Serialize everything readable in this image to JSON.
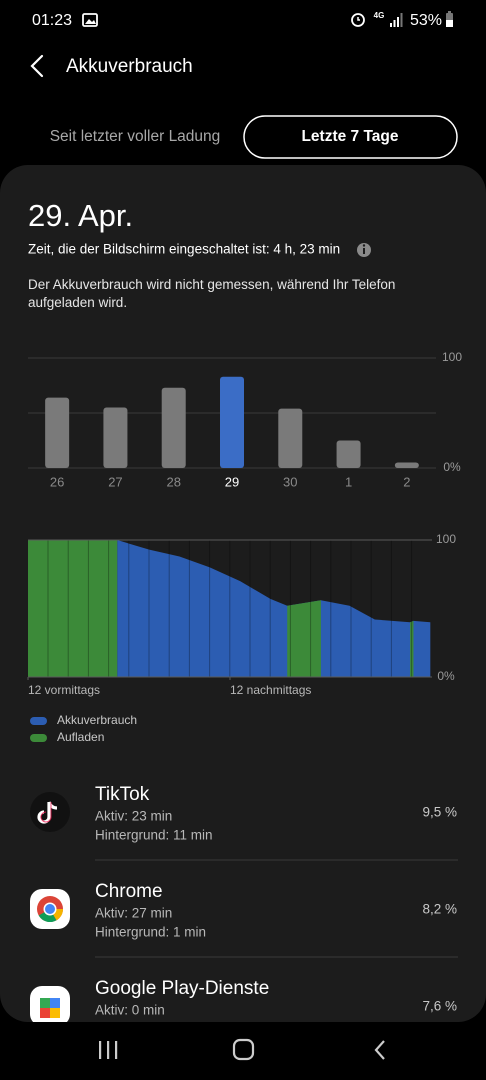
{
  "status_bar": {
    "time": "01:23",
    "network": "4G",
    "battery": "53%"
  },
  "header": {
    "title": "Akkuverbrauch"
  },
  "tabs": [
    "Seit letzter voller Ladung",
    "Letzte 7 Tage"
  ],
  "date": "29. Apr.",
  "screen_time": "Zeit, die der Bildschirm eingeschaltet ist: 4 h, 23 min",
  "note": "Der Akkuverbrauch wird nicht gemessen, während Ihr Telefon aufgeladen wird.",
  "chart_data": [
    {
      "type": "bar",
      "categories": [
        "26",
        "27",
        "28",
        "29",
        "30",
        "1",
        "2"
      ],
      "values": [
        64,
        55,
        73,
        83,
        54,
        25,
        5
      ],
      "colors": [
        "#7a7a7a",
        "#7a7a7a",
        "#7a7a7a",
        "#3b6dc6",
        "#7a7a7a",
        "#7a7a7a",
        "#7a7a7a"
      ],
      "ylim": [
        0,
        100
      ],
      "yticks": [
        {
          "value": 0,
          "label": "0%"
        },
        100
      ]
    },
    {
      "type": "area",
      "x": [
        0,
        5.3,
        6.1,
        7.2,
        9.0,
        10.8,
        12.6,
        14.4,
        15.4,
        17.4,
        19.1,
        20.6,
        22.7,
        22.9,
        23.9
      ],
      "series": [
        {
          "name": "Akkuverbrauch",
          "color": "#2c5db2",
          "values": [
            null,
            100,
            97,
            93,
            88,
            80,
            70,
            57,
            52,
            56,
            52,
            42,
            40,
            41,
            40
          ]
        },
        {
          "name": "Aufladen",
          "color": "#3c8a39",
          "values": [
            100,
            100,
            null,
            null,
            null,
            null,
            null,
            null,
            52,
            56,
            null,
            null,
            40,
            41,
            null
          ]
        }
      ],
      "xlim": [
        0,
        24
      ],
      "xticks": [
        {
          "value": 0,
          "label": "12 vormittags"
        },
        {
          "value": 12,
          "label": "12 nachmittags"
        }
      ],
      "ylim": [
        0,
        100
      ],
      "yticks": [
        {
          "value": 0,
          "label": "0%"
        },
        100
      ]
    }
  ],
  "apps": [
    {
      "name": "TikTok",
      "active": "Aktiv: 23 min",
      "background": "Hintergrund: 11 min",
      "share": "9,5 %"
    },
    {
      "name": "Chrome",
      "active": "Aktiv: 27 min",
      "background": "Hintergrund: 1 min",
      "share": "8,2 %"
    },
    {
      "name": "Google Play-Dienste",
      "active": "Aktiv: 0 min",
      "background": "",
      "share": "7,6 %"
    }
  ]
}
